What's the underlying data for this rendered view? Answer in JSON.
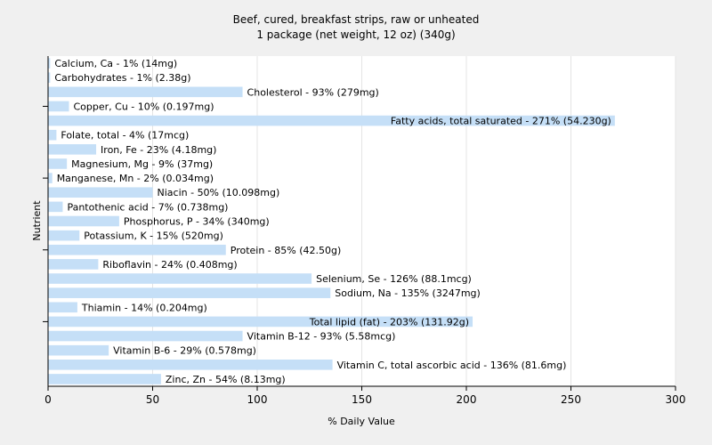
{
  "chart_data": {
    "type": "bar",
    "orientation": "horizontal",
    "title": "Beef, cured, breakfast strips, raw or unheated",
    "subtitle": "1 package (net weight, 12 oz) (340g)",
    "xlabel": "% Daily Value",
    "ylabel": "Nutrient",
    "xlim": [
      0,
      300
    ],
    "xticks": [
      "0",
      "50",
      "100",
      "150",
      "200",
      "250",
      "300"
    ],
    "grid": true,
    "bar_color": "#c5dff7",
    "categories": [
      "Calcium, Ca",
      "Carbohydrates",
      "Cholesterol",
      "Copper, Cu",
      "Fatty acids, total saturated",
      "Folate, total",
      "Iron, Fe",
      "Magnesium, Mg",
      "Manganese, Mn",
      "Niacin",
      "Pantothenic acid",
      "Phosphorus, P",
      "Potassium, K",
      "Protein",
      "Riboflavin",
      "Selenium, Se",
      "Sodium, Na",
      "Thiamin",
      "Total lipid (fat)",
      "Vitamin B-12",
      "Vitamin B-6",
      "Vitamin C, total ascorbic acid",
      "Zinc, Zn"
    ],
    "values": [
      1,
      1,
      93,
      10,
      271,
      4,
      23,
      9,
      2,
      50,
      7,
      34,
      15,
      85,
      24,
      126,
      135,
      14,
      203,
      93,
      29,
      136,
      54
    ],
    "labels": [
      "Calcium, Ca - 1% (14mg)",
      "Carbohydrates - 1% (2.38g)",
      "Cholesterol - 93% (279mg)",
      "Copper, Cu - 10% (0.197mg)",
      "Fatty acids, total saturated - 271% (54.230g)",
      "Folate, total - 4% (17mcg)",
      "Iron, Fe - 23% (4.18mg)",
      "Magnesium, Mg - 9% (37mg)",
      "Manganese, Mn - 2% (0.034mg)",
      "Niacin - 50% (10.098mg)",
      "Pantothenic acid - 7% (0.738mg)",
      "Phosphorus, P - 34% (340mg)",
      "Potassium, K - 15% (520mg)",
      "Protein - 85% (42.50g)",
      "Riboflavin - 24% (0.408mg)",
      "Selenium, Se - 126% (88.1mcg)",
      "Sodium, Na - 135% (3247mg)",
      "Thiamin - 14% (0.204mg)",
      "Total lipid (fat) - 203% (131.92g)",
      "Vitamin B-12 - 93% (5.58mcg)",
      "Vitamin B-6 - 29% (0.578mg)",
      "Vitamin C, total ascorbic acid - 136% (81.6mg)",
      "Zinc, Zn - 54% (8.13mg)"
    ]
  }
}
